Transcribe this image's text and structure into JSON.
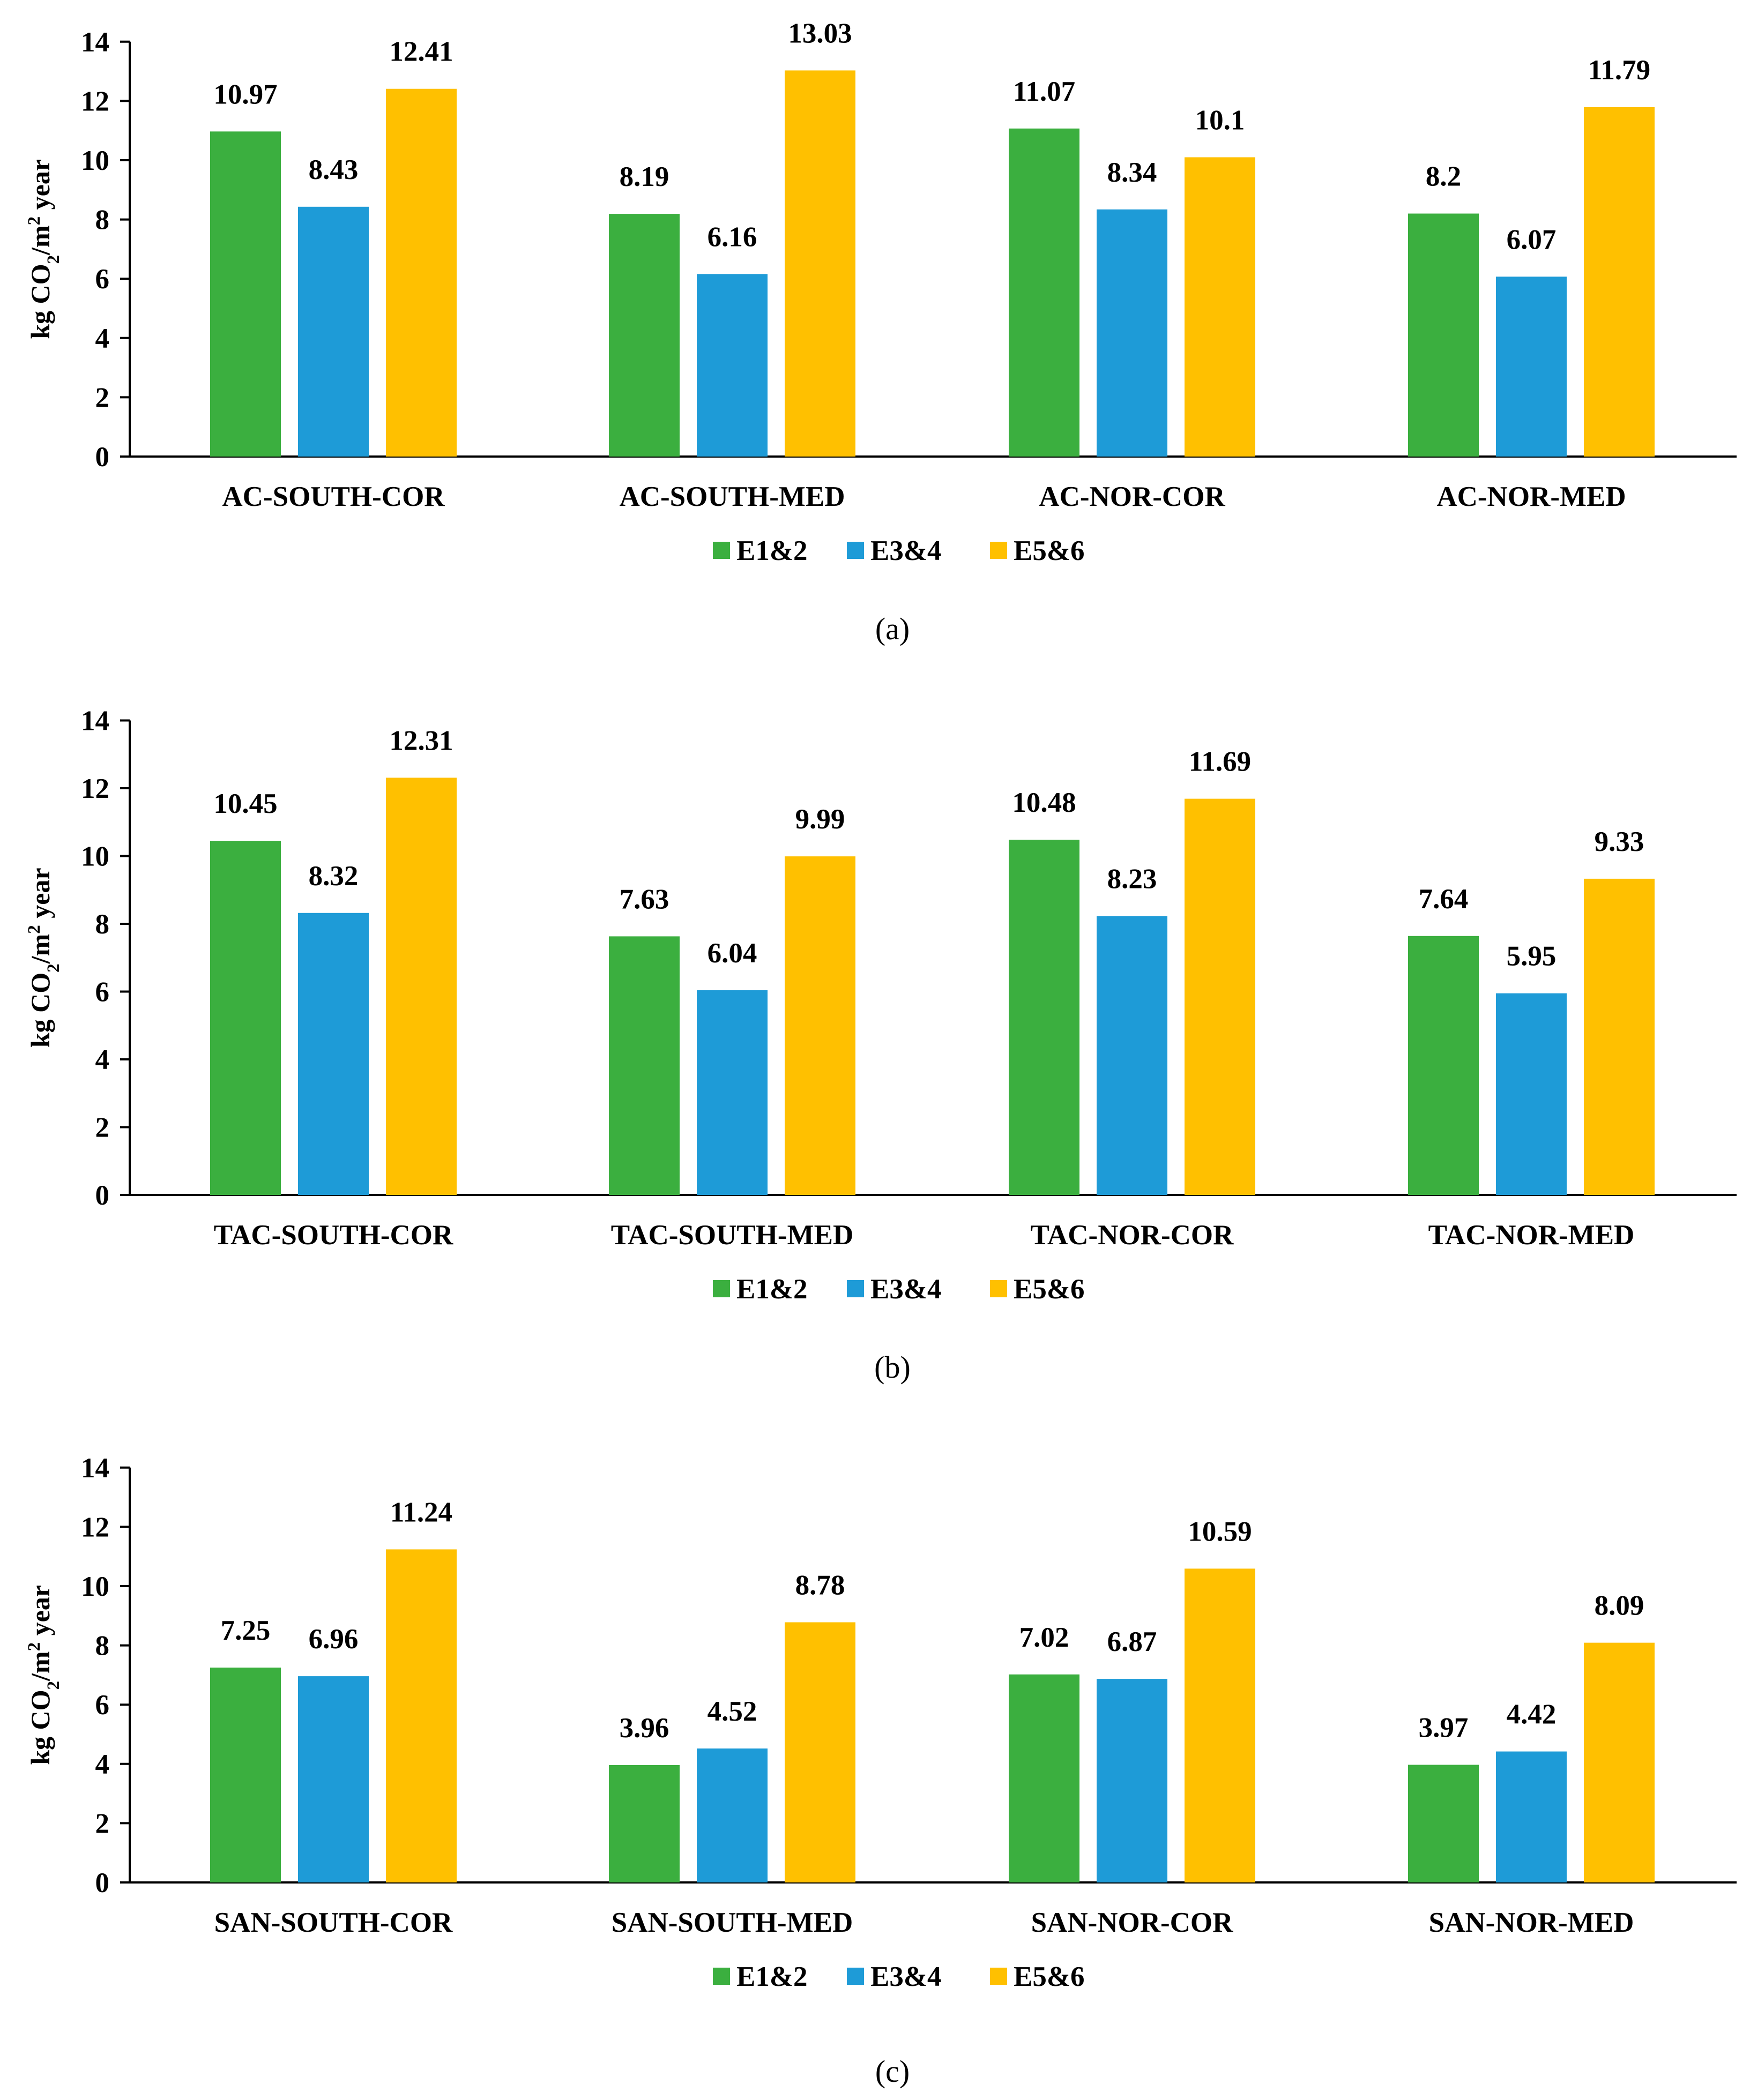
{
  "legend_labels": [
    "E1&2",
    "E3&4",
    "E5&6"
  ],
  "series_colors": [
    "#3BAF3F",
    "#1E9BD7",
    "#FFC000"
  ],
  "y_axis": {
    "label_prefix": "kg CO",
    "label_sub": "2",
    "label_mid": "/m",
    "label_sup": "2",
    "label_suffix": " year"
  },
  "chart_data": [
    {
      "type": "bar",
      "caption": "(a)",
      "categories": [
        "AC-SOUTH-COR",
        "AC-SOUTH-MED",
        "AC-NOR-COR",
        "AC-NOR-MED"
      ],
      "series": [
        {
          "name": "E1&2",
          "values": [
            10.97,
            8.19,
            11.07,
            8.2
          ],
          "labels": [
            "10.97",
            "8.19",
            "11.07",
            "8.2"
          ]
        },
        {
          "name": "E3&4",
          "values": [
            8.43,
            6.16,
            8.34,
            6.07
          ],
          "labels": [
            "8.43",
            "6.16",
            "8.34",
            "6.07"
          ]
        },
        {
          "name": "E5&6",
          "values": [
            12.41,
            13.03,
            10.1,
            11.79
          ],
          "labels": [
            "12.41",
            "13.03",
            "10.1",
            "11.79"
          ]
        }
      ],
      "ylim": [
        0,
        14
      ],
      "yticks": [
        "0",
        "2",
        "4",
        "6",
        "8",
        "10",
        "12",
        "14"
      ],
      "ylabel": "kg CO2/m2 year",
      "legend": "bottom",
      "grid": false
    },
    {
      "type": "bar",
      "caption": "(b)",
      "categories": [
        "TAC-SOUTH-COR",
        "TAC-SOUTH-MED",
        "TAC-NOR-COR",
        "TAC-NOR-MED"
      ],
      "series": [
        {
          "name": "E1&2",
          "values": [
            10.45,
            7.63,
            10.48,
            7.64
          ],
          "labels": [
            "10.45",
            "7.63",
            "10.48",
            "7.64"
          ]
        },
        {
          "name": "E3&4",
          "values": [
            8.32,
            6.04,
            8.23,
            5.95
          ],
          "labels": [
            "8.32",
            "6.04",
            "8.23",
            "5.95"
          ]
        },
        {
          "name": "E5&6",
          "values": [
            12.31,
            9.99,
            11.69,
            9.33
          ],
          "labels": [
            "12.31",
            "9.99",
            "11.69",
            "9.33"
          ]
        }
      ],
      "ylim": [
        0,
        14
      ],
      "yticks": [
        "0",
        "2",
        "4",
        "6",
        "8",
        "10",
        "12",
        "14"
      ],
      "ylabel": "kg CO2/m2 year",
      "legend": "bottom",
      "grid": false
    },
    {
      "type": "bar",
      "caption": "(c)",
      "categories": [
        "SAN-SOUTH-COR",
        "SAN-SOUTH-MED",
        "SAN-NOR-COR",
        "SAN-NOR-MED"
      ],
      "series": [
        {
          "name": "E1&2",
          "values": [
            7.25,
            3.96,
            7.02,
            3.97
          ],
          "labels": [
            "7.25",
            "3.96",
            "7.02",
            "3.97"
          ]
        },
        {
          "name": "E3&4",
          "values": [
            6.96,
            4.52,
            6.87,
            4.42
          ],
          "labels": [
            "6.96",
            "4.52",
            "6.87",
            "4.42"
          ]
        },
        {
          "name": "E5&6",
          "values": [
            11.24,
            8.78,
            10.59,
            8.09
          ],
          "labels": [
            "11.24",
            "8.78",
            "10.59",
            "8.09"
          ]
        }
      ],
      "ylim": [
        0,
        14
      ],
      "yticks": [
        "0",
        "2",
        "4",
        "6",
        "8",
        "10",
        "12",
        "14"
      ],
      "ylabel": "kg CO2/m2 year",
      "legend": "bottom",
      "grid": false
    }
  ]
}
